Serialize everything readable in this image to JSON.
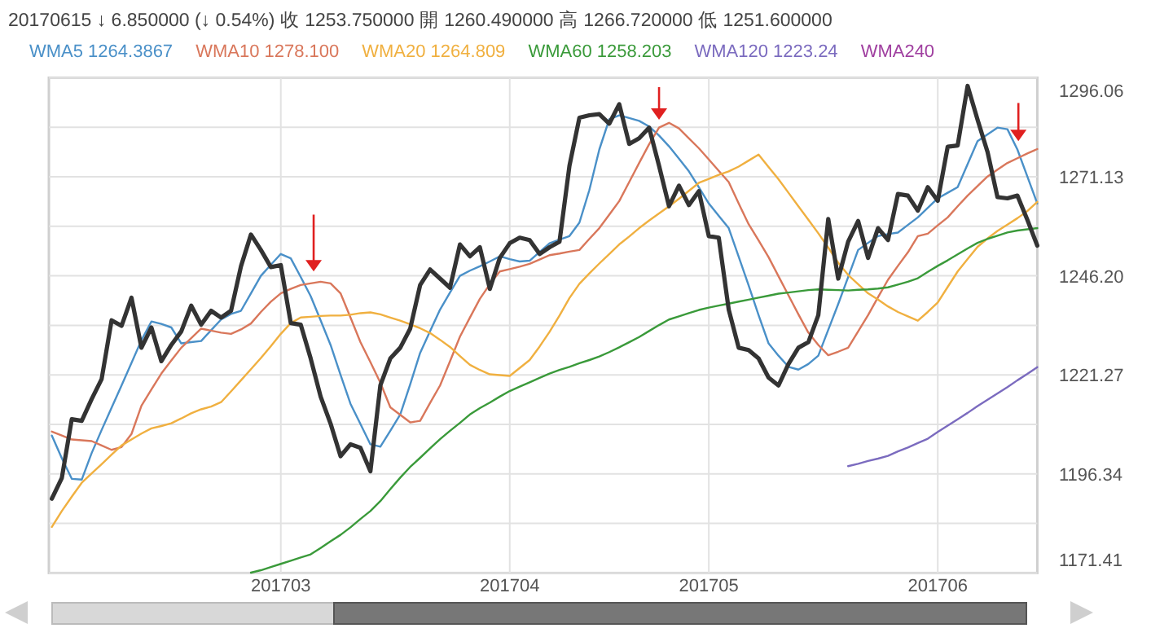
{
  "chart_data": {
    "type": "line",
    "title": "20170615 ↓ 6.850000 (↓ 0.54%) 收 1253.750000 開 1260.490000 高 1266.720000 低 1251.600000",
    "categories": [
      null,
      null,
      null,
      null,
      null,
      null,
      null,
      null,
      null,
      null,
      null,
      null,
      null,
      null,
      null,
      null,
      null,
      null,
      null,
      null,
      null,
      null,
      null,
      "201703",
      null,
      null,
      null,
      null,
      null,
      null,
      null,
      null,
      null,
      null,
      null,
      null,
      null,
      null,
      null,
      null,
      null,
      null,
      null,
      null,
      null,
      null,
      "201704",
      null,
      null,
      null,
      null,
      null,
      null,
      null,
      null,
      null,
      null,
      null,
      null,
      null,
      null,
      null,
      null,
      null,
      null,
      null,
      "201705",
      null,
      null,
      null,
      null,
      null,
      null,
      null,
      null,
      null,
      null,
      null,
      null,
      null,
      null,
      null,
      null,
      null,
      null,
      null,
      null,
      null,
      null,
      "201706",
      null,
      null,
      null,
      null,
      null,
      null,
      null,
      null,
      null,
      null
    ],
    "ylim": [
      1171.41,
      1296.06
    ],
    "yticks": [
      1171.41,
      {
        "value": 1183.875,
        "label": null
      },
      1196.34,
      {
        "value": 1208.805,
        "label": null
      },
      1221.27,
      {
        "value": 1233.735,
        "label": null
      },
      {
        "value": 1246.2,
        "label": "1246.20"
      },
      {
        "value": 1258.665,
        "label": null
      },
      1271.13,
      {
        "value": 1283.595,
        "label": null
      },
      1296.06
    ],
    "grid": true,
    "legend": "top",
    "line_style": "solid",
    "marker": "none",
    "series": [
      {
        "color": "#333333",
        "values": [
          1190.1,
          1195.3,
          1210.1,
          1209.7,
          1215.2,
          1220.2,
          1235.0,
          1233.6,
          1240.7,
          1228.1,
          1233.2,
          1224.7,
          1228.8,
          1232.2,
          1238.7,
          1233.9,
          1237.4,
          1235.7,
          1237.4,
          1248.6,
          1256.6,
          1252.7,
          1248.4,
          1248.9,
          1234.3,
          1233.9,
          1225.4,
          1215.8,
          1209.0,
          1200.8,
          1203.8,
          1202.9,
          1197.0,
          1218.6,
          1225.4,
          1228.1,
          1232.9,
          1243.9,
          1247.8,
          1245.5,
          1243.2,
          1254.1,
          1251.1,
          1253.4,
          1242.9,
          1250.7,
          1254.4,
          1255.8,
          1255.2,
          1251.7,
          1253.4,
          1254.8,
          1273.9,
          1286.0,
          1286.6,
          1286.9,
          1284.5,
          1289.4,
          1279.4,
          1280.8,
          1283.5,
          1273.9,
          1263.7,
          1268.9,
          1264.0,
          1267.5,
          1256.2,
          1255.8,
          1237.7,
          1228.1,
          1227.5,
          1225.4,
          1220.6,
          1218.6,
          1224.0,
          1228.1,
          1229.5,
          1236.3,
          1260.5,
          1245.5,
          1254.8,
          1260.0,
          1250.7,
          1258.2,
          1255.2,
          1266.8,
          1266.4,
          1262.6,
          1268.5,
          1265.1,
          1278.7,
          1279.0,
          1294.0,
          1285.5,
          1277.4,
          1266.0,
          1265.7,
          1266.4,
          1260.3,
          1253.8
        ]
      },
      {
        "name": "WMA5 1264.3867",
        "color": "#4a90c8",
        "values": [
          1206.0,
          1200.3,
          1195.1,
          1194.9,
          1201.6,
          1207.4,
          1213.0,
          1218.6,
          1224.3,
          1230.0,
          1234.7,
          1234.1,
          1233.2,
          1229.2,
          1229.5,
          1229.8,
          1232.5,
          1235.2,
          1236.6,
          1237.4,
          1241.8,
          1246.2,
          1249.0,
          1251.7,
          1250.6,
          1245.9,
          1241.1,
          1235.0,
          1228.8,
          1221.3,
          1214.0,
          1208.9,
          1203.8,
          1203.2,
          1207.2,
          1211.3,
          1218.9,
          1226.8,
          1232.3,
          1237.7,
          1242.0,
          1246.2,
          1247.5,
          1248.6,
          1249.8,
          1251.1,
          1250.4,
          1249.8,
          1250.0,
          1252.2,
          1254.4,
          1255.3,
          1256.2,
          1259.6,
          1267.8,
          1278.0,
          1285.6,
          1286.6,
          1285.9,
          1285.2,
          1283.8,
          1281.5,
          1278.8,
          1275.7,
          1272.5,
          1268.5,
          1264.4,
          1261.3,
          1258.2,
          1251.0,
          1243.8,
          1236.3,
          1229.2,
          1226.1,
          1223.3,
          1222.6,
          1224.0,
          1226.1,
          1232.6,
          1239.1,
          1245.9,
          1252.7,
          1254.5,
          1256.2,
          1256.7,
          1257.1,
          1259.0,
          1260.9,
          1263.3,
          1265.7,
          1267.1,
          1268.5,
          1274.3,
          1280.1,
          1281.8,
          1283.5,
          1283.1,
          1278.0,
          1271.2,
          1264.4
        ]
      },
      {
        "name": "WMA10 1278.100",
        "color": "#d9775b",
        "values": [
          1207.0,
          1206.0,
          1205.0,
          1204.8,
          1204.6,
          1203.5,
          1202.4,
          1203.1,
          1206.4,
          1213.5,
          1217.6,
          1221.6,
          1224.9,
          1228.1,
          1230.5,
          1232.9,
          1232.4,
          1231.9,
          1231.6,
          1232.7,
          1234.2,
          1237.1,
          1239.7,
          1241.8,
          1242.9,
          1243.9,
          1244.3,
          1244.7,
          1244.3,
          1241.8,
          1235.7,
          1229.5,
          1224.5,
          1219.3,
          1213.1,
          1211.2,
          1209.3,
          1209.7,
          1214.2,
          1218.6,
          1224.7,
          1230.9,
          1235.7,
          1240.4,
          1244.1,
          1247.3,
          1247.9,
          1248.5,
          1249.2,
          1250.3,
          1251.4,
          1251.8,
          1252.3,
          1252.7,
          1255.5,
          1258.2,
          1261.6,
          1265.0,
          1269.8,
          1274.6,
          1279.3,
          1283.5,
          1284.7,
          1283.3,
          1280.8,
          1278.3,
          1275.5,
          1272.6,
          1269.8,
          1264.4,
          1259.2,
          1255.1,
          1250.9,
          1246.1,
          1241.3,
          1236.5,
          1231.9,
          1228.8,
          1226.2,
          1227.1,
          1228.1,
          1232.2,
          1236.3,
          1240.8,
          1245.2,
          1248.7,
          1252.1,
          1256.2,
          1256.8,
          1258.9,
          1260.9,
          1263.7,
          1266.4,
          1268.8,
          1271.2,
          1272.9,
          1274.6,
          1275.8,
          1277.0,
          1278.1
        ]
      },
      {
        "name": "WMA20 1264.809",
        "color": "#f0b040",
        "values": [
          1183.0,
          1187.0,
          1190.6,
          1194.1,
          1196.5,
          1198.8,
          1201.2,
          1203.5,
          1205.0,
          1206.5,
          1207.8,
          1208.4,
          1209.1,
          1210.3,
          1211.6,
          1212.6,
          1213.3,
          1214.4,
          1217.1,
          1219.9,
          1222.7,
          1225.5,
          1228.5,
          1231.6,
          1234.3,
          1235.7,
          1235.9,
          1236.1,
          1236.2,
          1236.2,
          1236.4,
          1236.8,
          1237.0,
          1236.5,
          1235.7,
          1234.9,
          1234.0,
          1233.0,
          1231.8,
          1230.1,
          1228.3,
          1226.0,
          1223.8,
          1222.5,
          1221.4,
          1221.2,
          1221.0,
          1223.0,
          1225.0,
          1228.4,
          1232.1,
          1236.2,
          1240.6,
          1244.2,
          1246.8,
          1249.3,
          1251.7,
          1254.1,
          1256.1,
          1258.2,
          1260.1,
          1261.9,
          1263.7,
          1265.6,
          1267.6,
          1269.6,
          1270.6,
          1271.6,
          1272.5,
          1273.7,
          1275.2,
          1276.7,
          1273.6,
          1270.5,
          1267.1,
          1263.7,
          1260.3,
          1256.9,
          1253.3,
          1249.5,
          1246.4,
          1244.1,
          1241.8,
          1240.2,
          1238.5,
          1237.1,
          1236.0,
          1234.9,
          1237.1,
          1239.5,
          1243.4,
          1247.3,
          1250.4,
          1253.5,
          1255.6,
          1257.5,
          1259.1,
          1260.7,
          1262.5,
          1264.8
        ]
      },
      {
        "name": "WMA60 1258.203",
        "color": "#3a9a3a",
        "values": [
          null,
          null,
          null,
          null,
          null,
          null,
          null,
          null,
          null,
          null,
          null,
          null,
          null,
          null,
          null,
          null,
          null,
          null,
          null,
          null,
          1171.5,
          1172.1,
          1172.9,
          1173.7,
          1174.5,
          1175.3,
          1176.1,
          1177.7,
          1179.4,
          1181.0,
          1182.9,
          1185.0,
          1187.0,
          1189.5,
          1192.5,
          1195.4,
          1198.1,
          1200.4,
          1202.8,
          1205.1,
          1207.2,
          1209.2,
          1211.3,
          1212.9,
          1214.3,
          1215.8,
          1217.2,
          1218.3,
          1219.4,
          1220.5,
          1221.6,
          1222.5,
          1223.3,
          1224.2,
          1225.0,
          1225.9,
          1227.0,
          1228.2,
          1229.5,
          1230.8,
          1232.3,
          1233.8,
          1235.2,
          1236.0,
          1236.8,
          1237.6,
          1238.2,
          1238.7,
          1239.2,
          1239.7,
          1240.2,
          1240.7,
          1241.2,
          1241.7,
          1242.0,
          1242.3,
          1242.6,
          1242.8,
          1242.7,
          1242.6,
          1242.5,
          1242.7,
          1242.8,
          1243.0,
          1243.3,
          1244.0,
          1244.7,
          1245.6,
          1247.2,
          1248.7,
          1250.1,
          1251.6,
          1253.1,
          1254.5,
          1255.5,
          1256.3,
          1257.1,
          1257.6,
          1257.9,
          1258.2
        ]
      },
      {
        "name": "WMA120 1223.24",
        "color": "#7b6bbf",
        "values": [
          null,
          null,
          null,
          null,
          null,
          null,
          null,
          null,
          null,
          null,
          null,
          null,
          null,
          null,
          null,
          null,
          null,
          null,
          null,
          null,
          null,
          null,
          null,
          null,
          null,
          null,
          null,
          null,
          null,
          null,
          null,
          null,
          null,
          null,
          null,
          null,
          null,
          null,
          null,
          null,
          null,
          null,
          null,
          null,
          null,
          null,
          null,
          null,
          null,
          null,
          null,
          null,
          null,
          null,
          null,
          null,
          null,
          null,
          null,
          null,
          null,
          null,
          null,
          null,
          null,
          null,
          null,
          null,
          null,
          null,
          null,
          null,
          null,
          null,
          null,
          null,
          null,
          null,
          null,
          null,
          1198.3,
          1198.9,
          1199.6,
          1200.2,
          1200.9,
          1202.0,
          1203.0,
          1204.1,
          1205.2,
          1206.9,
          1208.5,
          1210.1,
          1211.7,
          1213.4,
          1215.0,
          1216.6,
          1218.2,
          1219.9,
          1221.5,
          1223.2
        ]
      },
      {
        "name": "WMA240",
        "color": "#a040a0",
        "values": [
          null,
          null,
          null,
          null,
          null,
          null,
          null,
          null,
          null,
          null,
          null,
          null,
          null,
          null,
          null,
          null,
          null,
          null,
          null,
          null,
          null,
          null,
          null,
          null,
          null,
          null,
          null,
          null,
          null,
          null,
          null,
          null,
          null,
          null,
          null,
          null,
          null,
          null,
          null,
          null,
          null,
          null,
          null,
          null,
          null,
          null,
          null,
          null,
          null,
          null,
          null,
          null,
          null,
          null,
          null,
          null,
          null,
          null,
          null,
          null,
          null,
          null,
          null,
          null,
          null,
          null,
          null,
          null,
          null,
          null,
          null,
          null,
          null,
          null,
          null,
          null,
          null,
          null,
          null,
          null,
          null,
          null,
          null,
          null,
          null,
          null,
          null,
          null,
          null,
          null,
          null,
          null,
          null,
          null,
          null,
          null,
          null,
          null,
          null,
          null
        ]
      }
    ]
  }
}
